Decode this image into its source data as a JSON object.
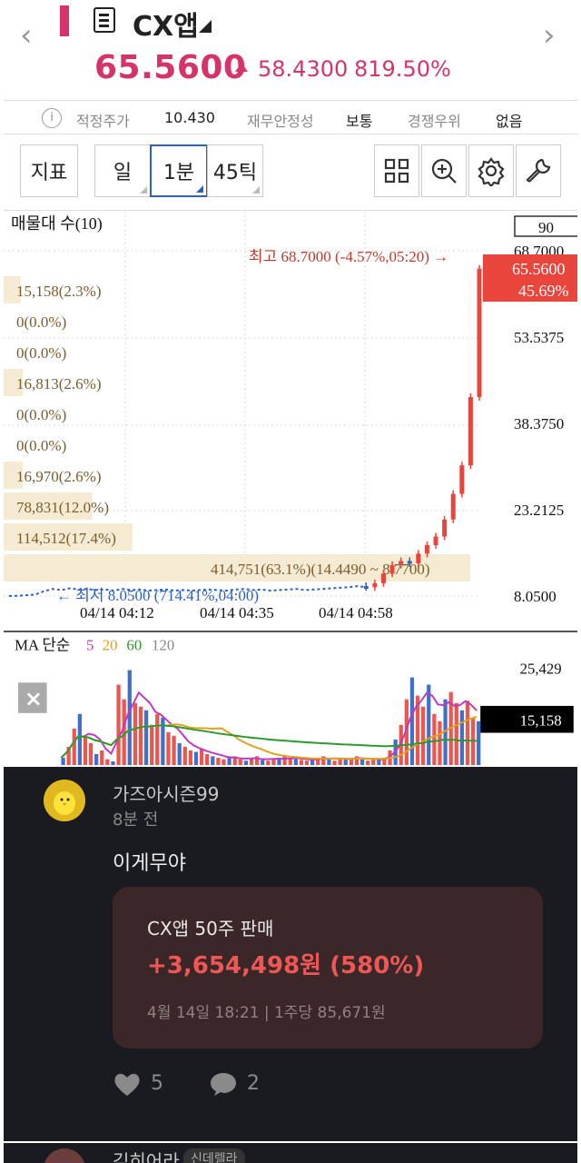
{
  "header": {
    "stock_name": "CX앱",
    "price": "65.5600",
    "change": "58.4300",
    "change_rate": "819.50%"
  },
  "info_row": {
    "info_icon": "i",
    "fair_price_label": "적정주가",
    "fair_price_value": "10.430",
    "stability_label": "재무안정성",
    "stability_value": "보통",
    "competitive_label": "경쟁우위",
    "competitive_value": "없음"
  },
  "toolbar": {
    "indicator": "지표",
    "day": "일",
    "minute": "1분",
    "tick": "45틱",
    "icons": [
      "grid-icon",
      "zoom-in-icon",
      "gear-icon",
      "wrench-icon"
    ]
  },
  "main_chart": {
    "title": "매물대 수(10)",
    "box_value": "90",
    "high_annotation": "최고 68.7000 (-4.57%,05:20) →",
    "low_annotation": "← 최저 8.0500 (714.41%,04:00)",
    "current_price": "65.5600",
    "current_rate": "45.69%",
    "y_ticks": [
      "68.7000",
      "53.5375",
      "38.3750",
      "23.2125",
      "8.0500"
    ],
    "x_ticks": [
      "04/14 04:12",
      "04/14 04:35",
      "04/14 04:58"
    ],
    "volume_profile": [
      {
        "label": "15,158(2.3%)",
        "pct": 2.3
      },
      {
        "label": "0(0.0%)",
        "pct": 0
      },
      {
        "label": "0(0.0%)",
        "pct": 0
      },
      {
        "label": "16,813(2.6%)",
        "pct": 2.6
      },
      {
        "label": "0(0.0%)",
        "pct": 0
      },
      {
        "label": "0(0.0%)",
        "pct": 0
      },
      {
        "label": "16,970(2.6%)",
        "pct": 2.6
      },
      {
        "label": "78,831(12.0%)",
        "pct": 12.0
      },
      {
        "label": "114,512(17.4%)",
        "pct": 17.4
      },
      {
        "label": "414,751(63.1%)(14.4490 ~ 8.7700)",
        "pct": 63.1
      }
    ]
  },
  "volume_chart": {
    "legend_label": "MA 단순",
    "ma_periods": [
      {
        "label": "5",
        "color": "#c03ac0"
      },
      {
        "label": "20",
        "color": "#e0a020"
      },
      {
        "label": "60",
        "color": "#2e9a2e"
      },
      {
        "label": "120",
        "color": "#888888"
      }
    ],
    "y_top": "25,429",
    "current_volume": "15,158",
    "close_icon": "×"
  },
  "comments": [
    {
      "username": "가즈아시즌99",
      "time": "8분 전",
      "text": "이게무야",
      "trade": {
        "title": "CX앱 50주 판매",
        "profit": "+3,654,498원 (580%)",
        "date": "4월 14일 18:21 | 1주당 85,671원"
      },
      "likes": "5",
      "replies": "2"
    },
    {
      "username": "김히어라",
      "badge": "신데렐라"
    }
  ],
  "chart_data": {
    "type": "candlestick",
    "y_range": [
      8.05,
      68.7
    ],
    "y_ticks": [
      68.7,
      53.5375,
      38.375,
      23.2125,
      8.05
    ],
    "x_ticks": [
      "04/14 04:12",
      "04/14 04:35",
      "04/14 04:58"
    ],
    "high": 68.7,
    "low": 8.05,
    "last": 65.56,
    "price_path": [
      8.05,
      8.1,
      8.2,
      8.3,
      8.9,
      9.3,
      9.1,
      9.4,
      9.2,
      9.3,
      9.1,
      9.2,
      9.0,
      9.3,
      9.1,
      9.2,
      9.0,
      9.1,
      9.2,
      9.0,
      9.1,
      9.0,
      9.1,
      9.2,
      9.1,
      9.0,
      9.2,
      9.3,
      9.1,
      9.2,
      9.0,
      9.1,
      9.2,
      9.3,
      9.1,
      9.2,
      9.3,
      9.4,
      9.5,
      9.6,
      9.8,
      9.6,
      10.3,
      12.0,
      13.5,
      14.2,
      13.8,
      15.5,
      17.0,
      18.5,
      21.5,
      26.0,
      31.0,
      43.0,
      65.56
    ],
    "volume_ma": {
      "5": "magenta",
      "20": "orange",
      "60": "green",
      "120": "gray"
    }
  }
}
